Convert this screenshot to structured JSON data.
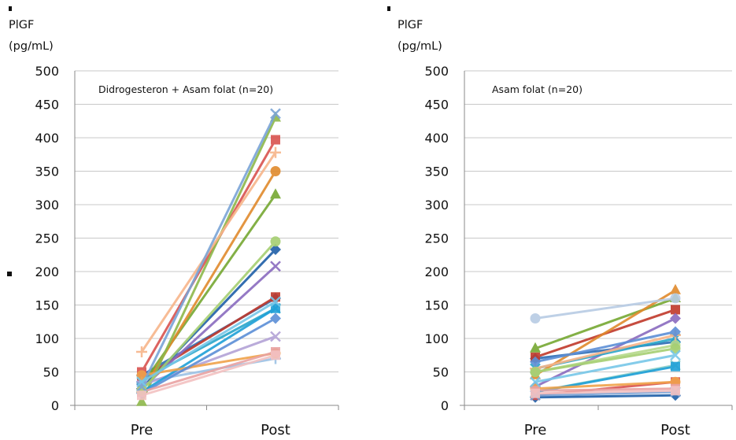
{
  "chart_data": [
    {
      "type": "line",
      "ylabel_line1": "PlGF",
      "ylabel_line2": "(pg/mL)",
      "annotation": "Didrogesteron + Asam folat (n=20)",
      "categories": [
        "Pre",
        "Post"
      ],
      "ylim": [
        0,
        500
      ],
      "yticks": [
        "0",
        "50",
        "100",
        "150",
        "200",
        "250",
        "300",
        "350",
        "400",
        "450",
        "500"
      ],
      "grid": true,
      "series": [
        {
          "values": [
            45,
            160
          ],
          "color": "#2e6db4",
          "marker": "diamond"
        },
        {
          "values": [
            40,
            162
          ],
          "color": "#c0392b",
          "marker": "square"
        },
        {
          "values": [
            30,
            315
          ],
          "color": "#76a832",
          "marker": "triangle"
        },
        {
          "values": [
            25,
            208
          ],
          "color": "#8a6bbf",
          "marker": "x"
        },
        {
          "values": [
            38,
            145
          ],
          "color": "#2aa6c9",
          "marker": "x"
        },
        {
          "values": [
            20,
            350
          ],
          "color": "#e08a2c",
          "marker": "circle"
        },
        {
          "values": [
            35,
            70
          ],
          "color": "#9cc2e5",
          "marker": "plus"
        },
        {
          "values": [
            25,
            233
          ],
          "color": "#1f5fa8",
          "marker": "diamond"
        },
        {
          "values": [
            50,
            397
          ],
          "color": "#d9534f",
          "marker": "square"
        },
        {
          "values": [
            5,
            430
          ],
          "color": "#8db84a",
          "marker": "triangle"
        },
        {
          "values": [
            30,
            103
          ],
          "color": "#b3a2d6",
          "marker": "x"
        },
        {
          "values": [
            20,
            145
          ],
          "color": "#1fa0d8",
          "marker": "square"
        },
        {
          "values": [
            45,
            78
          ],
          "color": "#f0a24a",
          "marker": "circle"
        },
        {
          "values": [
            80,
            378
          ],
          "color": "#f7b58a",
          "marker": "plus"
        },
        {
          "values": [
            18,
            130
          ],
          "color": "#5b8ed6",
          "marker": "diamond"
        },
        {
          "values": [
            20,
            80
          ],
          "color": "#e9a3a3",
          "marker": "square"
        },
        {
          "values": [
            22,
            245
          ],
          "color": "#a6cf72",
          "marker": "circle"
        },
        {
          "values": [
            28,
            436
          ],
          "color": "#7aa4d6",
          "marker": "x"
        },
        {
          "values": [
            35,
            155
          ],
          "color": "#77c7e8",
          "marker": "x"
        },
        {
          "values": [
            15,
            75
          ],
          "color": "#f3c2c2",
          "marker": "square"
        }
      ]
    },
    {
      "type": "line",
      "ylabel_line1": "PlGF",
      "ylabel_line2": "(pg/mL)",
      "annotation": "Asam folat (n=20)",
      "categories": [
        "Pre",
        "Post"
      ],
      "ylim": [
        0,
        500
      ],
      "yticks": [
        "0",
        "50",
        "100",
        "150",
        "200",
        "250",
        "300",
        "350",
        "400",
        "450",
        "500"
      ],
      "grid": true,
      "series": [
        {
          "values": [
            70,
            95
          ],
          "color": "#2e6db4",
          "marker": "diamond"
        },
        {
          "values": [
            72,
            143
          ],
          "color": "#c0392b",
          "marker": "square"
        },
        {
          "values": [
            85,
            160
          ],
          "color": "#76a832",
          "marker": "triangle"
        },
        {
          "values": [
            28,
            130
          ],
          "color": "#8a6bbf",
          "marker": "diamond"
        },
        {
          "values": [
            55,
            100
          ],
          "color": "#2aa6c9",
          "marker": "x"
        },
        {
          "values": [
            45,
            172
          ],
          "color": "#e08a2c",
          "marker": "triangle"
        },
        {
          "values": [
            130,
            160
          ],
          "color": "#b8cce4",
          "marker": "circle"
        },
        {
          "values": [
            12,
            15
          ],
          "color": "#1f5fa8",
          "marker": "diamond"
        },
        {
          "values": [
            15,
            35
          ],
          "color": "#d9534f",
          "marker": "square"
        },
        {
          "values": [
            50,
            90
          ],
          "color": "#b5d98a",
          "marker": "circle"
        },
        {
          "values": [
            20,
            60
          ],
          "color": "#8fd0c8",
          "marker": "x"
        },
        {
          "values": [
            20,
            58
          ],
          "color": "#1fa0d8",
          "marker": "square"
        },
        {
          "values": [
            25,
            35
          ],
          "color": "#f0a24a",
          "marker": "circle"
        },
        {
          "values": [
            55,
            105
          ],
          "color": "#f7b58a",
          "marker": "plus"
        },
        {
          "values": [
            65,
            110
          ],
          "color": "#5b8ed6",
          "marker": "diamond"
        },
        {
          "values": [
            22,
            25
          ],
          "color": "#e9a3a3",
          "marker": "square"
        },
        {
          "values": [
            50,
            85
          ],
          "color": "#a6cf72",
          "marker": "circle"
        },
        {
          "values": [
            15,
            20
          ],
          "color": "#7aa4d6",
          "marker": "x"
        },
        {
          "values": [
            35,
            75
          ],
          "color": "#77c7e8",
          "marker": "x"
        },
        {
          "values": [
            18,
            22
          ],
          "color": "#f3c2c2",
          "marker": "square"
        }
      ]
    }
  ]
}
